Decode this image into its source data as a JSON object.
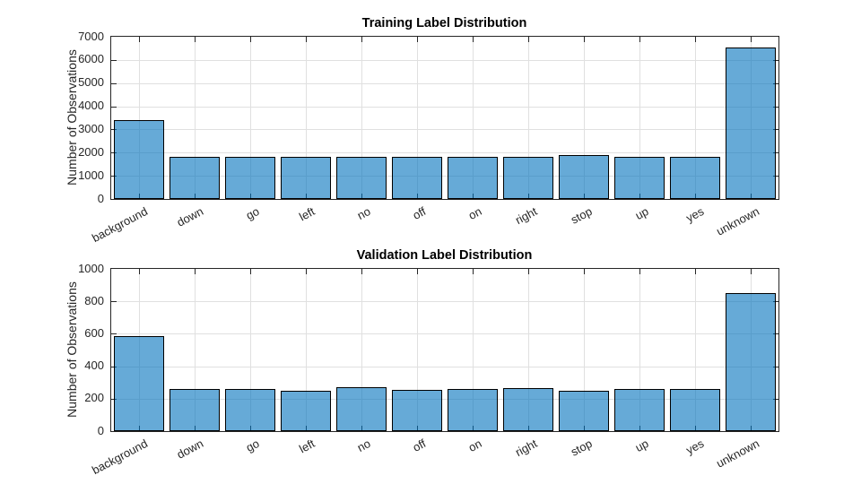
{
  "colors": {
    "background": "#ffffff",
    "bar_face": "rgba(0,114,189,0.6)",
    "bar_face_base": "#0072BD",
    "bar_edge": "#000000",
    "axis": "#262626",
    "grid": "#e0e0e0",
    "tick_text": "#262626",
    "title_text": "#000000"
  },
  "chart_data": [
    {
      "type": "bar",
      "title": "Training Label Distribution",
      "xlabel": "",
      "ylabel": "Number of Observations",
      "categories": [
        "background",
        "down",
        "go",
        "left",
        "no",
        "off",
        "on",
        "right",
        "stop",
        "up",
        "yes",
        "unknown"
      ],
      "values": [
        3403,
        1820,
        1827,
        1817,
        1832,
        1820,
        1836,
        1829,
        1885,
        1822,
        1832,
        6523
      ],
      "ylim": [
        0,
        7000
      ],
      "ytick_step": 1000,
      "ytick_labels": [
        "0",
        "1000",
        "2000",
        "3000",
        "4000",
        "5000",
        "6000",
        "7000"
      ],
      "grid": true,
      "legend": "none",
      "bar_width_ratio": 0.9,
      "x_label_rotation_deg": -28
    },
    {
      "type": "bar",
      "title": "Validation Label Distribution",
      "xlabel": "",
      "ylabel": "Number of Observations",
      "categories": [
        "background",
        "down",
        "go",
        "left",
        "no",
        "off",
        "on",
        "right",
        "stop",
        "up",
        "yes",
        "unknown"
      ],
      "values": [
        583,
        260,
        257,
        246,
        270,
        252,
        257,
        263,
        248,
        257,
        258,
        851
      ],
      "ylim": [
        0,
        1000
      ],
      "ytick_step": 200,
      "ytick_labels": [
        "0",
        "200",
        "400",
        "600",
        "800",
        "1000"
      ],
      "grid": true,
      "legend": "none",
      "bar_width_ratio": 0.9,
      "x_label_rotation_deg": -28
    }
  ]
}
